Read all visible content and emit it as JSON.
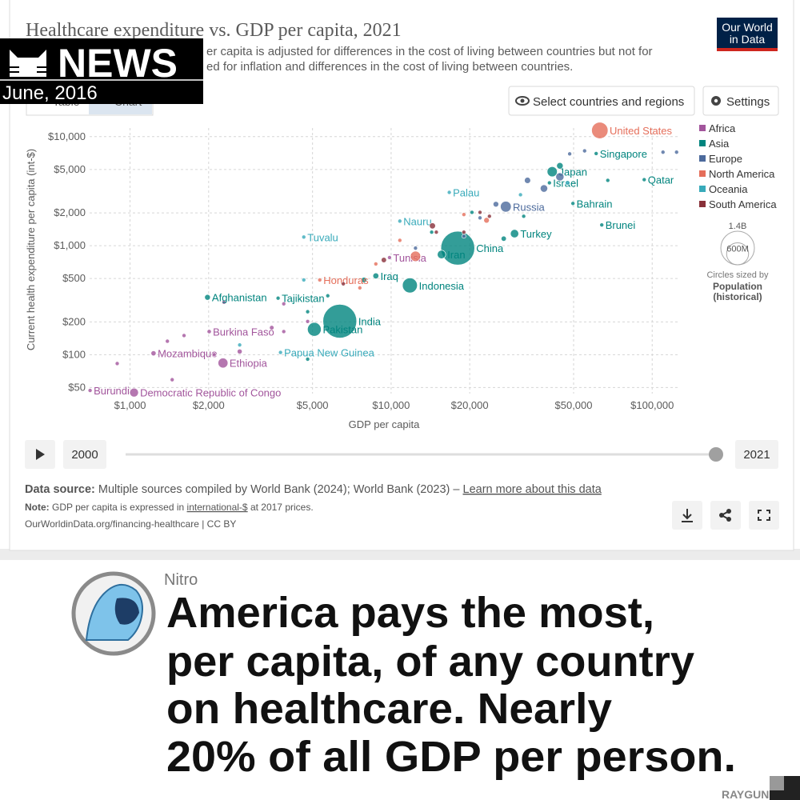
{
  "chart_data": {
    "type": "scatter",
    "title": "Healthcare expenditure vs. GDP per capita, 2021",
    "subtitle": [
      "er capita is adjusted for differences in the cost of living between countries but not for",
      "ed for inflation and differences in the cost of living between countries."
    ],
    "xlabel": "GDP per capita",
    "ylabel": "Current health expenditure per capita (int-$)",
    "xscale": "log",
    "yscale": "log",
    "xlim": [
      700,
      126000
    ],
    "ylim": [
      44,
      12000
    ],
    "xticks": [
      {
        "value": 1000,
        "label": "$1,000"
      },
      {
        "value": 2000,
        "label": "$2,000"
      },
      {
        "value": 5000,
        "label": "$5,000"
      },
      {
        "value": 10000,
        "label": "$10,000"
      },
      {
        "value": 20000,
        "label": "$20,000"
      },
      {
        "value": 50000,
        "label": "$50,000"
      },
      {
        "value": 100000,
        "label": "$100,000"
      }
    ],
    "yticks": [
      {
        "value": 50,
        "label": "$50"
      },
      {
        "value": 100,
        "label": "$100"
      },
      {
        "value": 200,
        "label": "$200"
      },
      {
        "value": 500,
        "label": "$500"
      },
      {
        "value": 1000,
        "label": "$1,000"
      },
      {
        "value": 2000,
        "label": "$2,000"
      },
      {
        "value": 5000,
        "label": "$5,000"
      },
      {
        "value": 10000,
        "label": "$10,000"
      }
    ],
    "grid": true,
    "legend_position": "right",
    "size_legend": {
      "title": "Circles sized by",
      "name": [
        "Population",
        "(historical)"
      ],
      "values": [
        {
          "value": 1400,
          "label": "1.4B"
        },
        {
          "value": 600,
          "label": "600M"
        }
      ]
    },
    "series": [
      {
        "name": "Africa",
        "color": "#a2559c",
        "x": [
          9860,
          2010,
          1230,
          2270,
          703,
          1036,
          1390,
          1610,
          3880,
          2630,
          1450,
          893,
          4790,
          3490,
          3880,
          2290,
          2100
        ],
        "y": [
          778,
          163,
          103,
          84,
          47,
          45,
          133,
          150,
          163,
          107,
          59,
          83,
          202,
          177,
          293,
          303,
          100
        ],
        "sizes": [
          12,
          22,
          32,
          120,
          12.5,
          96,
          20,
          15,
          8,
          30,
          18,
          10,
          5,
          25,
          6,
          20,
          12
        ],
        "labels": [
          "Tunisia",
          "Burkina Faso",
          "Mozambique",
          "Ethiopia",
          "Burundi",
          "Democratic Republic of Congo",
          null,
          null,
          null,
          null,
          null,
          null,
          null,
          null,
          null,
          null,
          null
        ]
      },
      {
        "name": "Asia",
        "color": "#00847e",
        "x": [
          41400,
          40400,
          61000,
          93200,
          49700,
          64100,
          29700,
          18000,
          15600,
          11800,
          6360,
          5080,
          8740,
          3690,
          1980,
          44300,
          27000,
          4790,
          7870,
          20400,
          14300,
          67600,
          32200,
          5720,
          4790
        ],
        "y": [
          4770,
          3770,
          7000,
          4030,
          2440,
          1550,
          1290,
          950,
          830,
          432,
          203,
          171,
          528,
          330,
          336,
          5400,
          1160,
          248,
          485,
          2020,
          1330,
          3970,
          1860,
          347,
          91
        ],
        "sizes": [
          125,
          9.4,
          5.9,
          2.7,
          1.5,
          0.45,
          85,
          1412,
          88,
          274,
          1408,
          231,
          43,
          9.8,
          40,
          52,
          33,
          17,
          36,
          5,
          10,
          3.4,
          4.4,
          7,
          20
        ],
        "labels": [
          "Japan",
          "Israel",
          "Singapore",
          "Qatar",
          "Bahrain",
          "Brunei",
          "Turkey",
          "China",
          "Iran",
          "Indonesia",
          "India",
          "Pakistan",
          "Iraq",
          "Tajikistan",
          "Afghanistan",
          null,
          null,
          null,
          null,
          null,
          null,
          null,
          null,
          null,
          null
        ]
      },
      {
        "name": "Europe",
        "color": "#4c6a9c",
        "x": [
          27500,
          55100,
          44300,
          33300,
          25200,
          21900,
          19000,
          12400,
          110000,
          124000,
          48300,
          38500
        ],
        "y": [
          2280,
          7400,
          4280,
          3970,
          2400,
          1800,
          1220,
          950,
          7200,
          7200,
          6950,
          3350
        ],
        "sizes": [
          144,
          5.4,
          83,
          47,
          38,
          10,
          9.7,
          6.9,
          0.64,
          5,
          8.7,
          67
        ],
        "labels": [
          "Russia",
          null,
          null,
          null,
          null,
          null,
          null,
          null,
          null,
          null,
          null,
          null
        ]
      },
      {
        "name": "North America",
        "color": "#e56e5a",
        "x": [
          63000,
          5330,
          23200,
          12400,
          8740,
          7590,
          19000,
          10800
        ],
        "y": [
          11400,
          485,
          1710,
          800,
          680,
          410,
          1930,
          1120
        ],
        "sizes": [
          332,
          10,
          38,
          127,
          5,
          11,
          4.3,
          2.8
        ],
        "labels": [
          "United States",
          "Honduras",
          null,
          null,
          null,
          null,
          null,
          null
        ]
      },
      {
        "name": "Oceania",
        "color": "#38aaba",
        "x": [
          16700,
          10800,
          4630,
          3770,
          47400,
          31300,
          2630,
          4630
        ],
        "y": [
          3080,
          1680,
          1200,
          105,
          3770,
          2930,
          123,
          485
        ],
        "sizes": [
          0.018,
          0.012,
          0.011,
          10,
          26,
          5,
          0.9,
          0.7
        ],
        "labels": [
          "Palau",
          "Nauru",
          "Tuvalu",
          "Papua New Guinea",
          null,
          null,
          null,
          null
        ]
      },
      {
        "name": "South America",
        "color": "#883039",
        "x": [
          14400,
          14900,
          19000,
          9380,
          21900,
          6560,
          23800
        ],
        "y": [
          1520,
          1330,
          1330,
          739,
          2020,
          447,
          1860
        ],
        "sizes": [
          45,
          19,
          19.5,
          34,
          3.4,
          12,
          3
        ],
        "labels": [
          null,
          null,
          null,
          null,
          null,
          null,
          null
        ]
      }
    ]
  },
  "page": {
    "logo": [
      "Our World",
      "in Data"
    ],
    "tabs": [
      "Table",
      "Chart"
    ],
    "buttons": [
      "Select countries and regions",
      "Settings"
    ],
    "timeline": {
      "start": 2000,
      "end": 2021
    },
    "source": {
      "label": "Data source:",
      "text": " Multiple sources compiled by World Bank (2024); World Bank (2023) – ",
      "link": "Learn more about this data"
    },
    "note": {
      "label": "Note:",
      "text": [
        " GDP per capita is expressed in ",
        "international-$",
        " at 2017 prices."
      ]
    },
    "url": "OurWorldinData.org/financing-healthcare | CC BY",
    "overlay": {
      "news": "NEWS",
      "date": "June, 2016"
    },
    "post": {
      "author": "Nitro",
      "headline": [
        "America pays the most,",
        "per capita, of any country",
        "on healthcare. Nearly",
        "20% of all GDP per person."
      ],
      "brand": "RAYGUN"
    }
  }
}
